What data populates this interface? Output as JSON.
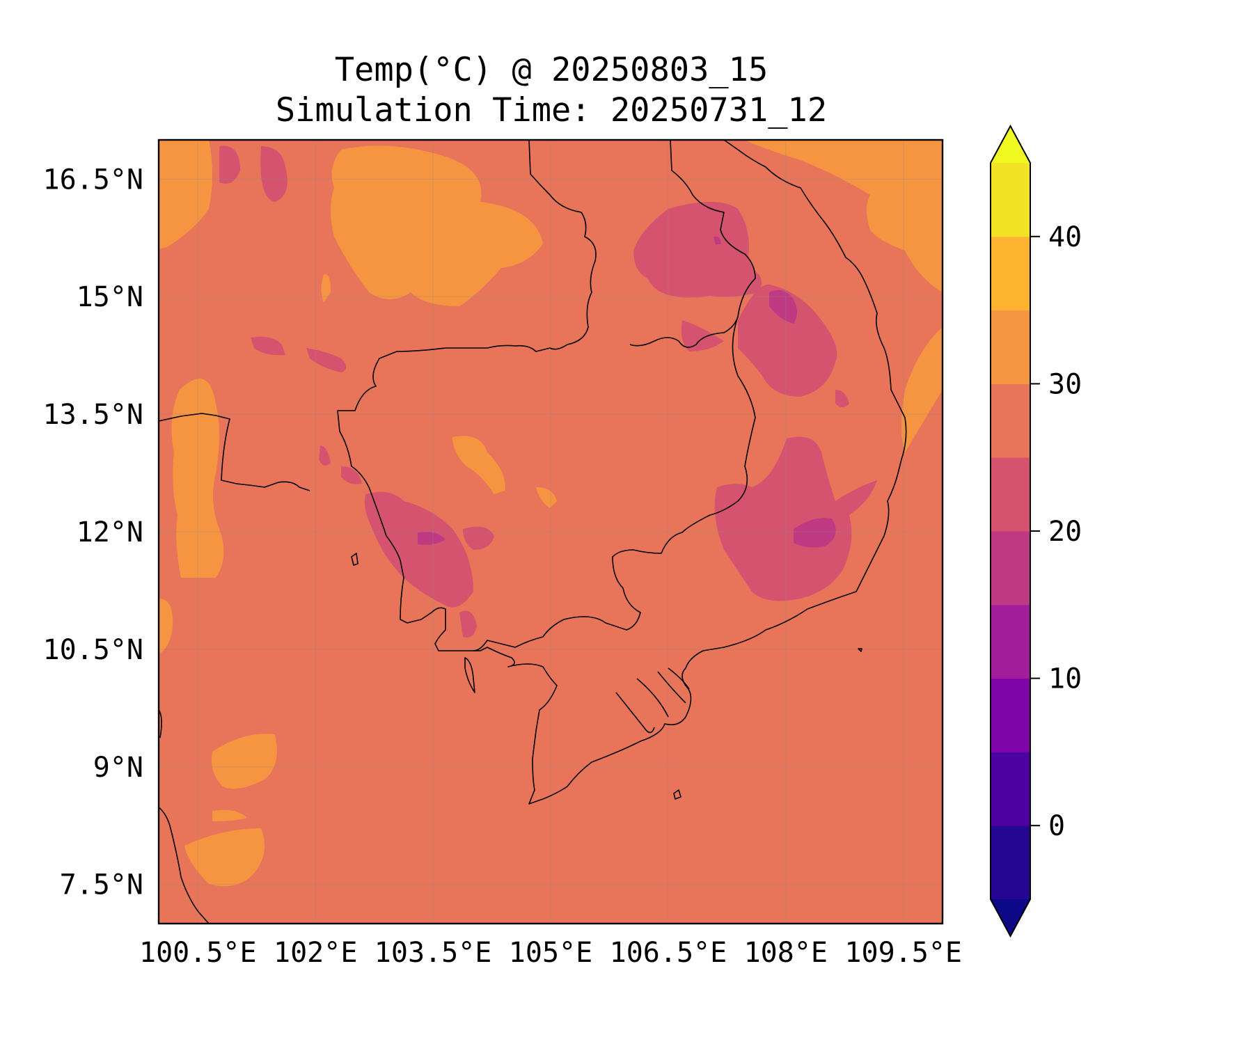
{
  "title": {
    "line1": "Temp(°C) @ 20250803_15",
    "line2": "Simulation Time: 20250731_12"
  },
  "map": {
    "lon_range": [
      100.0,
      110.0
    ],
    "lat_range": [
      7.0,
      17.0
    ],
    "lon_ticks": [
      {
        "value": 100.5,
        "label": "100.5°E"
      },
      {
        "value": 102.0,
        "label": "102°E"
      },
      {
        "value": 103.5,
        "label": "103.5°E"
      },
      {
        "value": 105.0,
        "label": "105°E"
      },
      {
        "value": 106.5,
        "label": "106.5°E"
      },
      {
        "value": 108.0,
        "label": "108°E"
      },
      {
        "value": 109.5,
        "label": "109.5°E"
      }
    ],
    "lat_ticks": [
      {
        "value": 16.5,
        "label": "16.5°N"
      },
      {
        "value": 15.0,
        "label": "15°N"
      },
      {
        "value": 13.5,
        "label": "13.5°N"
      },
      {
        "value": 12.0,
        "label": "12°N"
      },
      {
        "value": 10.5,
        "label": "10.5°N"
      },
      {
        "value": 9.0,
        "label": "9°N"
      },
      {
        "value": 7.5,
        "label": "7.5°N"
      }
    ],
    "gridlines": true,
    "background_level_color": "#e8755a"
  },
  "colorbar": {
    "levels": [
      -5,
      0,
      5,
      10,
      15,
      20,
      25,
      30,
      35,
      40,
      45
    ],
    "colors": [
      "#240691",
      "#4c02a1",
      "#7e03a8",
      "#a21d9a",
      "#c03a83",
      "#d5536f",
      "#e8755a",
      "#f69541",
      "#fdb32f",
      "#f2e326"
    ],
    "under_color": "#0d0887",
    "over_color": "#f0f921",
    "extend": "both",
    "ticks": [
      {
        "value": 0,
        "label": "0"
      },
      {
        "value": 10,
        "label": "10"
      },
      {
        "value": 20,
        "label": "20"
      },
      {
        "value": 30,
        "label": "30"
      },
      {
        "value": 40,
        "label": "40"
      }
    ]
  }
}
